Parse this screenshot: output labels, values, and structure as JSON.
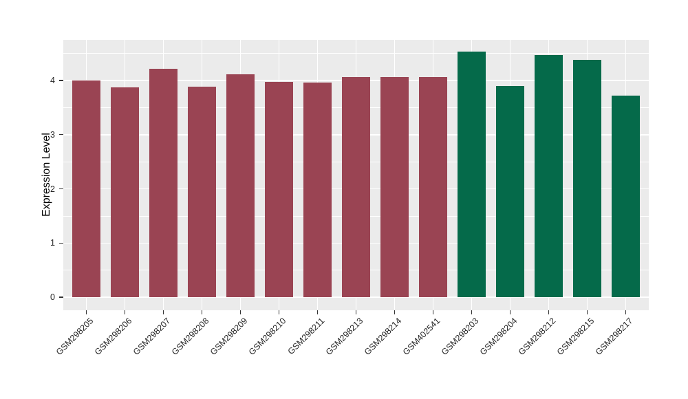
{
  "figure": {
    "background": "#FFFFFF"
  },
  "chart_data": {
    "type": "bar",
    "title": "",
    "xlabel": "",
    "ylabel": "Expression Level",
    "categories": [
      "GSM298205",
      "GSM298206",
      "GSM298207",
      "GSM298208",
      "GSM298209",
      "GSM298210",
      "GSM298211",
      "GSM298213",
      "GSM298214",
      "GSM402541",
      "GSM298203",
      "GSM298204",
      "GSM298212",
      "GSM298215",
      "GSM298217"
    ],
    "values": [
      4.0,
      3.88,
      4.22,
      3.89,
      4.12,
      3.98,
      3.96,
      4.06,
      4.07,
      4.06,
      4.54,
      3.9,
      4.47,
      4.38,
      3.72
    ],
    "bar_groups": [
      "group1",
      "group1",
      "group1",
      "group1",
      "group1",
      "group1",
      "group1",
      "group1",
      "group1",
      "group1",
      "group2",
      "group2",
      "group2",
      "group2",
      "group2"
    ],
    "group_colors": {
      "group1": "#9A4453",
      "group2": "#056A4A"
    },
    "yticks": [
      0,
      1,
      2,
      3,
      4
    ],
    "yticks_minor": [
      0.5,
      1.5,
      2.5,
      3.5,
      4.5
    ],
    "ylim": [
      0,
      4.75
    ],
    "panel_range": [
      -0.24,
      4.75
    ],
    "bar_width_fraction": 0.73,
    "grid": true,
    "legend_position": "none",
    "x_label_angle_deg": 45,
    "panel_bg": "#EBEBEB",
    "grid_color": "#FFFFFF",
    "axis_text_color": "#262626"
  }
}
